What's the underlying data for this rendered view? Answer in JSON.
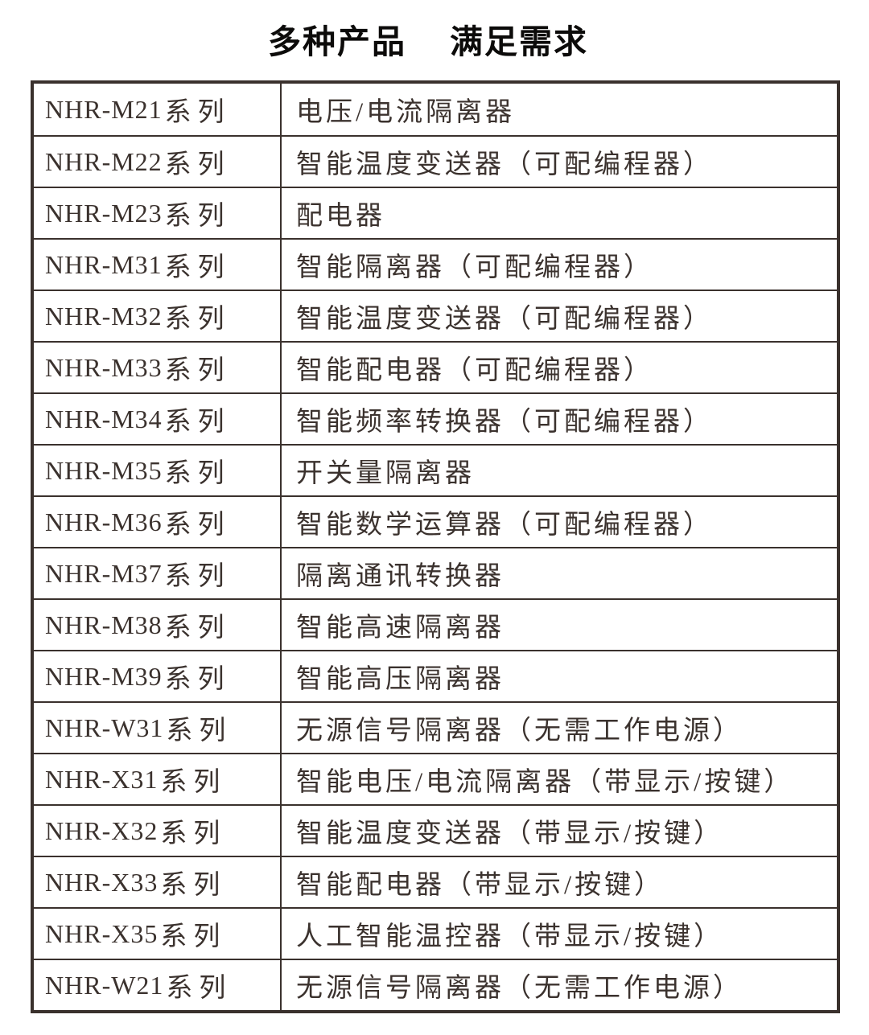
{
  "title": {
    "part1": "多种产品",
    "part2": "满足需求"
  },
  "colors": {
    "ink": "#3a312d",
    "text": "#3b322e",
    "title_text": "#0c0b0a",
    "background": "#ffffff"
  },
  "table": {
    "rows": [
      {
        "model": "NHR-M21",
        "suffix": "系列",
        "description": "电压/电流隔离器"
      },
      {
        "model": "NHR-M22",
        "suffix": "系列",
        "description": "智能温度变送器（可配编程器）"
      },
      {
        "model": "NHR-M23",
        "suffix": "系列",
        "description": "配电器"
      },
      {
        "model": "NHR-M31",
        "suffix": "系列",
        "description": "智能隔离器（可配编程器）"
      },
      {
        "model": "NHR-M32",
        "suffix": "系列",
        "description": "智能温度变送器（可配编程器）"
      },
      {
        "model": "NHR-M33",
        "suffix": "系列",
        "description": "智能配电器（可配编程器）"
      },
      {
        "model": "NHR-M34",
        "suffix": "系列",
        "description": "智能频率转换器（可配编程器）"
      },
      {
        "model": "NHR-M35",
        "suffix": "系列",
        "description": "开关量隔离器"
      },
      {
        "model": "NHR-M36",
        "suffix": "系列",
        "description": "智能数学运算器（可配编程器）"
      },
      {
        "model": "NHR-M37",
        "suffix": "系列",
        "description": "隔离通讯转换器"
      },
      {
        "model": "NHR-M38",
        "suffix": "系列",
        "description": "智能高速隔离器"
      },
      {
        "model": "NHR-M39",
        "suffix": "系列",
        "description": "智能高压隔离器"
      },
      {
        "model": "NHR-W31",
        "suffix": "系列",
        "description": "无源信号隔离器（无需工作电源）"
      },
      {
        "model": "NHR-X31",
        "suffix": "系列",
        "description": "智能电压/电流隔离器（带显示/按键）"
      },
      {
        "model": "NHR-X32",
        "suffix": "系列",
        "description": "智能温度变送器（带显示/按键）"
      },
      {
        "model": "NHR-X33",
        "suffix": "系列",
        "description": "智能配电器（带显示/按键）"
      },
      {
        "model": "NHR-X35",
        "suffix": "系列",
        "description": "人工智能温控器（带显示/按键）"
      },
      {
        "model": "NHR-W21",
        "suffix": "系列",
        "description": "无源信号隔离器（无需工作电源）"
      }
    ]
  }
}
